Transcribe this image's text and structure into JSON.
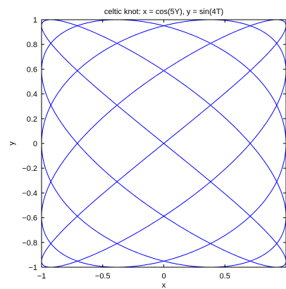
{
  "chart_data": {
    "type": "line",
    "title": "celtic knot: x = cos(5Y), y = sin(4T)",
    "xlabel": "x",
    "ylabel": "y",
    "xlim": [
      -1,
      1
    ],
    "ylim": [
      -1,
      1
    ],
    "grid": false,
    "box": true,
    "x_ticks": [
      -1,
      -0.5,
      0,
      0.5
    ],
    "x_tick_labels": [
      "−1",
      "−0.5",
      "0",
      "0.5"
    ],
    "y_ticks": [
      -1,
      -0.8,
      -0.6,
      -0.4,
      -0.2,
      0,
      0.2,
      0.4,
      0.6,
      0.8,
      1
    ],
    "y_tick_labels": [
      "−1",
      "−0.8",
      "−0.6",
      "−0.4",
      "−0.2",
      "0",
      "0.2",
      "0.4",
      "0.6",
      "0.8",
      "1"
    ],
    "series": [
      {
        "color": "#0000ff",
        "curve": "lissajous",
        "x_expression": "cos(5t)",
        "y_expression": "sin(4t)",
        "t_range": [
          0,
          6.283185307
        ]
      }
    ]
  }
}
